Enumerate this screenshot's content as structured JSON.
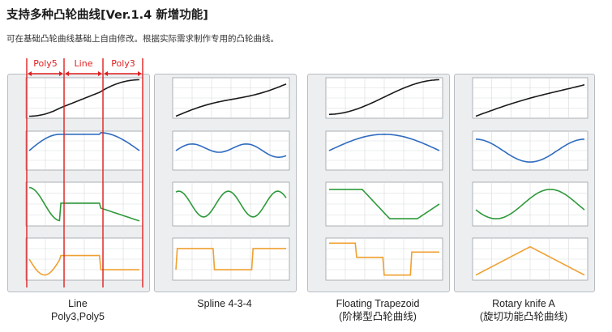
{
  "header": {
    "title": "支持多种凸轮曲线[Ver.1.4 新增功能]",
    "subtitle": "可在基础凸轮曲线基础上自由修改。根据实际需求制作专用的凸轮曲线。"
  },
  "segment_labels": [
    "Poly5",
    "Line",
    "Poly3"
  ],
  "panels": [
    {
      "caption_line1": "Line",
      "caption_line2": "Poly3,Poly5"
    },
    {
      "caption_line1": "Spline 4-3-4",
      "caption_line2": ""
    },
    {
      "caption_line1": "Floating Trapezoid",
      "caption_line2": "(阶梯型凸轮曲线)"
    },
    {
      "caption_line1": "Rotary knife A",
      "caption_line2": "(旋切功能凸轮曲线)"
    }
  ],
  "colors": {
    "position": "#1a1a1a",
    "velocity": "#2f6cc0",
    "acceleration": "#2e9a3a",
    "jerk": "#f0a030",
    "segment_marker": "#e02020",
    "panel_bg": "#eceef0",
    "plot_bg": "#ffffff"
  }
}
